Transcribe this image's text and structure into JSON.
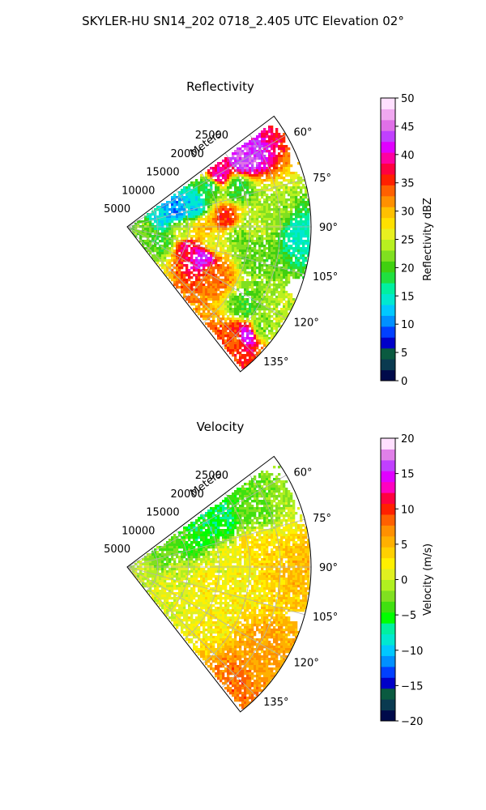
{
  "figure": {
    "suptitle": "SKYLER-HU  SN14_202  0718_2.405 UTC Elevation 02°"
  },
  "chart_data": [
    {
      "type": "heatmap",
      "projection": "polar-sector",
      "title": "Reflectivity",
      "radial_label": "Meters",
      "theta_range_deg": [
        53,
        142
      ],
      "theta_ticks_deg": [
        60,
        75,
        90,
        105,
        120,
        135
      ],
      "theta_tick_labels": [
        "60°",
        "75°",
        "90°",
        "105°",
        "120°",
        "135°"
      ],
      "r_range_m": [
        0,
        30000
      ],
      "r_ticks_m": [
        5000,
        10000,
        15000,
        20000,
        25000
      ],
      "r_tick_labels": [
        "5000",
        "10000",
        "15000",
        "20000",
        "25000"
      ],
      "grid": true,
      "colorbar": {
        "label": "Reflectivity dBZ",
        "range": [
          0,
          50
        ],
        "ticks": [
          0,
          5,
          10,
          15,
          20,
          25,
          30,
          35,
          40,
          45,
          50
        ],
        "tick_labels": [
          "0",
          "5",
          "10",
          "15",
          "20",
          "25",
          "30",
          "35",
          "40",
          "45",
          "50"
        ],
        "colors": [
          "#000a4a",
          "#0a3a50",
          "#0a5a40",
          "#0000c8",
          "#0040ff",
          "#0090ff",
          "#00c8ff",
          "#00e8d0",
          "#00f0a0",
          "#20e040",
          "#40d010",
          "#80e020",
          "#b8f020",
          "#e8f020",
          "#ffe000",
          "#ffc000",
          "#ff9000",
          "#ff6000",
          "#ff2000",
          "#ff0040",
          "#ff00a0",
          "#e000ff",
          "#c040ff",
          "#e070e8",
          "#f0a8f0",
          "#ffe0ff"
        ]
      },
      "cells": [
        {
          "r": 3000,
          "theta": 95,
          "value": 22
        },
        {
          "r": 5000,
          "theta": 75,
          "value": 14
        },
        {
          "r": 6000,
          "theta": 110,
          "value": 20
        },
        {
          "r": 8000,
          "theta": 68,
          "value": 11
        },
        {
          "r": 9000,
          "theta": 95,
          "value": 24
        },
        {
          "r": 10000,
          "theta": 108,
          "value": 38
        },
        {
          "r": 11000,
          "theta": 72,
          "value": 13
        },
        {
          "r": 12000,
          "theta": 90,
          "value": 30
        },
        {
          "r": 13000,
          "theta": 112,
          "value": 42
        },
        {
          "r": 14000,
          "theta": 100,
          "value": 26
        },
        {
          "r": 15000,
          "theta": 63,
          "value": 18
        },
        {
          "r": 16000,
          "theta": 84,
          "value": 35
        },
        {
          "r": 16000,
          "theta": 120,
          "value": 33
        },
        {
          "r": 17000,
          "theta": 60,
          "value": 40
        },
        {
          "r": 18000,
          "theta": 95,
          "value": 22
        },
        {
          "r": 19000,
          "theta": 70,
          "value": 19
        },
        {
          "r": 20000,
          "theta": 88,
          "value": 24
        },
        {
          "r": 21000,
          "theta": 102,
          "value": 21
        },
        {
          "r": 22000,
          "theta": 60,
          "value": 44
        },
        {
          "r": 23000,
          "theta": 124,
          "value": 20
        },
        {
          "r": 24000,
          "theta": 84,
          "value": 23
        },
        {
          "r": 25000,
          "theta": 136,
          "value": 34
        },
        {
          "r": 26000,
          "theta": 132,
          "value": 42
        },
        {
          "r": 27000,
          "theta": 127,
          "value": 22
        },
        {
          "r": 28000,
          "theta": 92,
          "value": 15
        }
      ]
    },
    {
      "type": "heatmap",
      "projection": "polar-sector",
      "title": "Velocity",
      "radial_label": "Meters",
      "theta_range_deg": [
        53,
        142
      ],
      "theta_ticks_deg": [
        60,
        75,
        90,
        105,
        120,
        135
      ],
      "theta_tick_labels": [
        "60°",
        "75°",
        "90°",
        "105°",
        "120°",
        "135°"
      ],
      "r_range_m": [
        0,
        30000
      ],
      "r_ticks_m": [
        5000,
        10000,
        15000,
        20000,
        25000
      ],
      "r_tick_labels": [
        "5000",
        "10000",
        "15000",
        "20000",
        "25000"
      ],
      "grid": true,
      "colorbar": {
        "label": "Velocity (m/s)",
        "range": [
          -20,
          20
        ],
        "ticks": [
          -20,
          -15,
          -10,
          -5,
          0,
          5,
          10,
          15,
          20
        ],
        "tick_labels": [
          "−20",
          "−15",
          "−10",
          "−5",
          "0",
          "5",
          "10",
          "15",
          "20"
        ],
        "colors": [
          "#000a4a",
          "#0a3a50",
          "#0a5a40",
          "#0000c8",
          "#0040ff",
          "#0090ff",
          "#00c8ff",
          "#00e8d0",
          "#00f0a0",
          "#00ff00",
          "#40e010",
          "#80e020",
          "#b0f020",
          "#e0f020",
          "#fff000",
          "#ffd000",
          "#ffb000",
          "#ff9000",
          "#ff6000",
          "#ff2000",
          "#ff0040",
          "#ff00c0",
          "#e000ff",
          "#c040ff",
          "#e080e8",
          "#ffe0ff"
        ]
      },
      "cells": [
        {
          "r": 3000,
          "theta": 98,
          "value": 0
        },
        {
          "r": 5000,
          "theta": 78,
          "value": -3
        },
        {
          "r": 7000,
          "theta": 112,
          "value": 1
        },
        {
          "r": 9000,
          "theta": 92,
          "value": 0
        },
        {
          "r": 10000,
          "theta": 72,
          "value": -4
        },
        {
          "r": 12000,
          "theta": 100,
          "value": 2
        },
        {
          "r": 13000,
          "theta": 66,
          "value": -5
        },
        {
          "r": 15000,
          "theta": 86,
          "value": 1
        },
        {
          "r": 16000,
          "theta": 118,
          "value": 2
        },
        {
          "r": 17000,
          "theta": 62,
          "value": -6
        },
        {
          "r": 19000,
          "theta": 94,
          "value": 2
        },
        {
          "r": 21000,
          "theta": 80,
          "value": 3
        },
        {
          "r": 22000,
          "theta": 66,
          "value": -3
        },
        {
          "r": 24000,
          "theta": 90,
          "value": 4
        },
        {
          "r": 25000,
          "theta": 122,
          "value": 6
        },
        {
          "r": 26000,
          "theta": 134,
          "value": 8
        },
        {
          "r": 27000,
          "theta": 128,
          "value": 6
        },
        {
          "r": 28000,
          "theta": 90,
          "value": 5
        }
      ]
    }
  ]
}
